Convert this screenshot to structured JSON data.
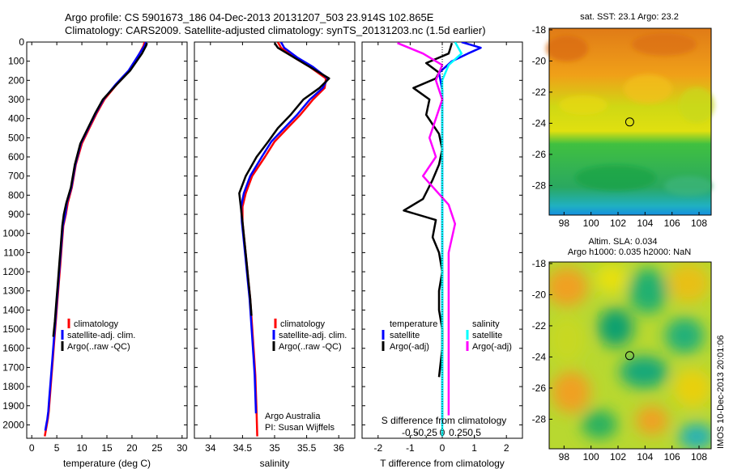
{
  "header": {
    "line1": "Argo profile: CS 5901673_186 04-Dec-2013 20131207_503 23.914S 102.865E",
    "line2": "Climatology: CARS2009. Satellite-adjusted climatology: synTS_20131203.nc (1.5d earlier)"
  },
  "colors": {
    "climatology": "#ff0000",
    "satellite": "#0000ff",
    "argo": "#000000",
    "sal_satellite": "#00ffff",
    "sal_argo": "#ff00ff"
  },
  "chart_data": [
    {
      "type": "line",
      "panel": "temperature",
      "xlabel": "temperature (deg C)",
      "ylabel": "",
      "xlim": [
        -1,
        31
      ],
      "ylim": [
        2070,
        0
      ],
      "xticks": [
        0,
        5,
        10,
        15,
        20,
        25,
        30
      ],
      "yticks": [
        0,
        100,
        200,
        300,
        400,
        500,
        600,
        700,
        800,
        900,
        1000,
        1100,
        1200,
        1300,
        1400,
        1500,
        1600,
        1700,
        1800,
        1900,
        2000
      ],
      "legend": [
        "climatology",
        "satellite-adj. clim.",
        "Argo(..raw -QC)"
      ],
      "series": [
        {
          "name": "climatology",
          "color": "#ff0000",
          "x": [
            22.5,
            22.3,
            21.5,
            19.5,
            17.0,
            14.5,
            13.0,
            11.5,
            10.0,
            8.8,
            8.0,
            7.2,
            6.8,
            6.3,
            6.0,
            5.7,
            5.4,
            5.1,
            4.8,
            4.5,
            4.2,
            3.9,
            3.6,
            3.4,
            3.2,
            3.0,
            2.8,
            2.6
          ],
          "y": [
            0,
            20,
            60,
            150,
            220,
            300,
            370,
            450,
            530,
            640,
            760,
            840,
            900,
            960,
            1060,
            1160,
            1260,
            1360,
            1460,
            1560,
            1660,
            1760,
            1860,
            1930,
            1970,
            2000,
            2030,
            2060
          ]
        },
        {
          "name": "satellite-adj. clim.",
          "color": "#0000ff",
          "x": [
            22.8,
            22.5,
            21.5,
            19.3,
            16.8,
            14.3,
            12.8,
            11.3,
            9.8,
            8.7,
            7.9,
            7.0,
            6.7,
            6.2,
            5.9,
            5.6,
            5.3,
            5.0,
            4.7,
            4.4,
            4.1,
            3.8,
            3.5,
            3.3,
            3.1,
            2.9,
            2.7
          ],
          "y": [
            0,
            20,
            60,
            150,
            220,
            300,
            370,
            450,
            530,
            640,
            760,
            840,
            900,
            960,
            1060,
            1160,
            1260,
            1360,
            1460,
            1560,
            1660,
            1760,
            1860,
            1930,
            1970,
            2000,
            2030
          ]
        },
        {
          "name": "Argo(..raw -QC)",
          "color": "#000000",
          "x": [
            23.0,
            22.8,
            22.0,
            19.6,
            17.0,
            14.2,
            12.7,
            11.2,
            9.7,
            8.6,
            7.8,
            6.9,
            6.4,
            6.1,
            5.8,
            5.5,
            5.2,
            4.9,
            4.6,
            4.3
          ],
          "y": [
            5,
            20,
            60,
            150,
            220,
            300,
            370,
            450,
            530,
            640,
            760,
            840,
            900,
            960,
            1060,
            1160,
            1260,
            1360,
            1460,
            1540
          ]
        }
      ]
    },
    {
      "type": "line",
      "panel": "salinity",
      "xlabel": "salinity",
      "xlim": [
        33.75,
        36.25
      ],
      "ylim": [
        2070,
        0
      ],
      "xticks": [
        34,
        34.5,
        35,
        35.5,
        36
      ],
      "legend": [
        "climatology",
        "satellite-adj. clim.",
        "Argo(..raw -QC)"
      ],
      "annotation": [
        "Argo Australia",
        "PI: Susan Wijffels"
      ],
      "series": [
        {
          "name": "climatology",
          "color": "#ff0000",
          "x": [
            35.05,
            35.1,
            35.3,
            35.55,
            35.8,
            35.78,
            35.6,
            35.4,
            35.2,
            35.0,
            34.85,
            34.65,
            34.55,
            34.5,
            34.5,
            34.53,
            34.56,
            34.59,
            34.62,
            34.64,
            34.66,
            34.68,
            34.7,
            34.71,
            34.72,
            34.73
          ],
          "y": [
            0,
            30,
            80,
            130,
            190,
            240,
            300,
            380,
            450,
            520,
            600,
            700,
            790,
            860,
            940,
            1040,
            1140,
            1240,
            1340,
            1440,
            1540,
            1640,
            1740,
            1840,
            1940,
            2060
          ]
        },
        {
          "name": "satellite-adj. clim.",
          "color": "#0000ff",
          "x": [
            35.1,
            35.15,
            35.35,
            35.6,
            35.83,
            35.75,
            35.55,
            35.35,
            35.15,
            34.95,
            34.8,
            34.62,
            34.52,
            34.48,
            34.49,
            34.52,
            34.55,
            34.58,
            34.61,
            34.63,
            34.65,
            34.67,
            34.69,
            34.7,
            34.71
          ],
          "y": [
            0,
            30,
            80,
            130,
            190,
            240,
            300,
            380,
            450,
            520,
            600,
            700,
            790,
            860,
            940,
            1040,
            1140,
            1240,
            1340,
            1440,
            1540,
            1640,
            1740,
            1840,
            1940
          ]
        },
        {
          "name": "Argo(..raw -QC)",
          "color": "#000000",
          "x": [
            35.0,
            35.05,
            35.3,
            35.55,
            35.85,
            35.7,
            35.45,
            35.25,
            35.05,
            34.9,
            34.72,
            34.55,
            34.45,
            34.48,
            34.5,
            34.53,
            34.56,
            34.59,
            34.62,
            34.64
          ],
          "y": [
            5,
            30,
            80,
            130,
            190,
            240,
            300,
            380,
            450,
            520,
            600,
            700,
            790,
            880,
            940,
            1040,
            1140,
            1240,
            1340,
            1430
          ]
        }
      ]
    },
    {
      "type": "line",
      "panel": "difference",
      "xlabel": "T difference from climatology",
      "xlabel_top": "S difference from climatology",
      "xlim": [
        -2.5,
        2.5
      ],
      "ylim": [
        2070,
        0
      ],
      "xticks": [
        -2,
        -1,
        0,
        1,
        2
      ],
      "xtick_labels_top": [
        "-0.5",
        "-0.25",
        "0",
        "0.25",
        "0.5"
      ],
      "legend_temperature": [
        "temperature",
        "satellite",
        "Argo(-adj)"
      ],
      "legend_salinity": [
        "salinity",
        "satellite",
        "Argo(-adj)"
      ],
      "series": [
        {
          "name": "satellite",
          "group": "temperature",
          "color": "#0000ff",
          "x": [
            0.6,
            1.2,
            0.8,
            0.3,
            -0.1,
            0.0,
            0.0,
            0.0,
            0.0,
            0.0,
            0.0,
            0.0,
            0.0,
            0.0,
            0.0,
            0.0,
            0.0,
            0.0,
            0.0,
            0.0,
            0.0
          ],
          "y": [
            0,
            30,
            60,
            100,
            160,
            250,
            350,
            450,
            550,
            650,
            750,
            850,
            950,
            1050,
            1150,
            1250,
            1350,
            1450,
            1550,
            1700,
            2000
          ]
        },
        {
          "name": "Argo(-adj)",
          "group": "temperature",
          "color": "#000000",
          "x": [
            0.3,
            0.2,
            -0.5,
            -0.1,
            -0.2,
            -0.9,
            -0.4,
            -0.5,
            -0.1,
            0.0,
            -0.1,
            -0.3,
            -0.6,
            -1.2,
            -0.2,
            -0.3,
            -0.1,
            0.0,
            -0.1,
            -0.1,
            0.0,
            0.0,
            -0.1
          ],
          "y": [
            5,
            60,
            110,
            160,
            190,
            240,
            300,
            380,
            480,
            560,
            640,
            720,
            820,
            880,
            930,
            1020,
            1100,
            1200,
            1300,
            1400,
            1500,
            1600,
            1750
          ]
        },
        {
          "name": "satellite",
          "group": "salinity",
          "color": "#00ffff",
          "x": [
            0.2,
            0.3,
            0.1,
            0.0,
            0.0,
            0.0,
            0.0,
            0.0,
            0.0,
            0.0,
            0.0
          ],
          "y": [
            0,
            60,
            120,
            200,
            400,
            600,
            800,
            1000,
            1200,
            1500,
            2060
          ]
        },
        {
          "name": "Argo(-adj)",
          "group": "salinity",
          "color": "#ff00ff",
          "x": [
            -0.7,
            -0.3,
            0.0,
            -0.1,
            0.0,
            -0.1,
            -0.2,
            -0.1,
            -0.3,
            0.1,
            0.2,
            0.1,
            0.1,
            0.1,
            0.1,
            0.1,
            0.1
          ],
          "y": [
            5,
            60,
            120,
            200,
            300,
            400,
            500,
            600,
            700,
            850,
            950,
            1100,
            1300,
            1500,
            1700,
            1850,
            1950
          ]
        }
      ]
    }
  ],
  "maps": {
    "sst": {
      "title": "sat. SST: 23.1  Argo: 23.2",
      "xticks": [
        98,
        100,
        102,
        104,
        106,
        108
      ],
      "yticks": [
        -18,
        -20,
        -22,
        -24,
        -26,
        -28
      ]
    },
    "sla": {
      "title_line1": "Altim. SLA: 0.034",
      "title_line2": "Argo h1000: 0.035  h2000: NaN",
      "xticks": [
        98,
        100,
        102,
        104,
        106,
        108
      ],
      "yticks": [
        -18,
        -20,
        -22,
        -24,
        -26,
        -28
      ]
    },
    "lon_range": [
      96.9,
      108.9
    ],
    "lat_range": [
      -29.9,
      -17.9
    ],
    "argo_position": {
      "lon": 102.865,
      "lat": -23.914
    }
  },
  "footer": {
    "imos_label": "IMOS 10-Dec-2013 20:01:06"
  }
}
